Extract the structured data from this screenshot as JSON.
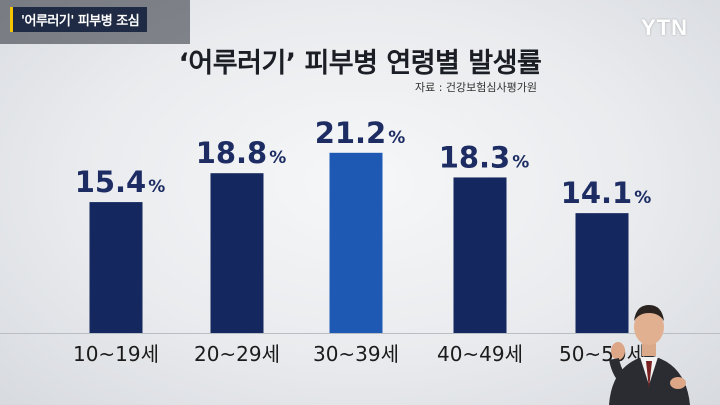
{
  "topic_badge": "'어루러기' 피부병 조심",
  "logo": "YTN",
  "chart_data": {
    "type": "bar",
    "title": "‘어루러기’ 피부병 연령별 발생률",
    "source": "자료 : 건강보험심사평가원",
    "categories": [
      "10~19세",
      "20~29세",
      "30~39세",
      "40~49세",
      "50~59세"
    ],
    "values": [
      15.4,
      18.8,
      21.2,
      18.3,
      14.1
    ],
    "value_labels": [
      "15.4",
      "18.8",
      "21.2",
      "18.3",
      "14.1"
    ],
    "unit": "%",
    "highlight_index": 2,
    "colors": {
      "bar": "#14275e",
      "highlight": "#1e5ab4",
      "value_text": "#1d2d63"
    }
  }
}
